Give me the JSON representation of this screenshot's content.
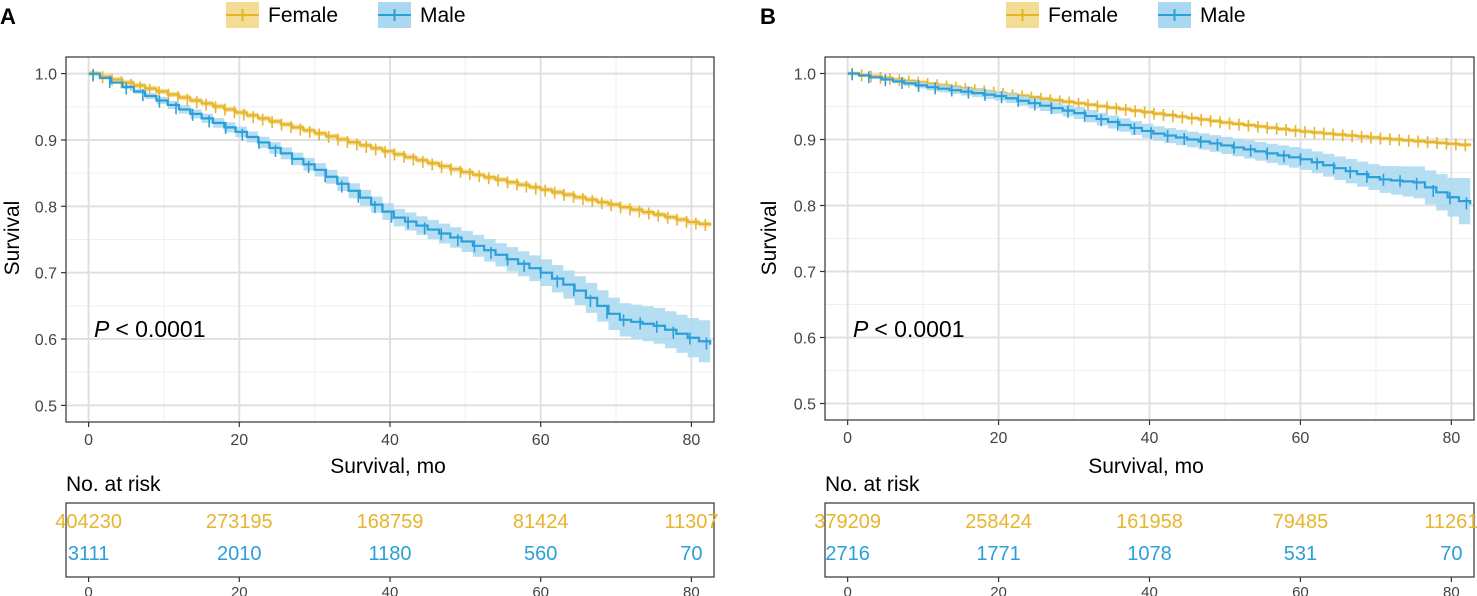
{
  "colors": {
    "female": "#E7B52C",
    "male": "#2B9FD9",
    "female_band": "#F3DC94",
    "male_band": "#A9D8F0",
    "grid": "#E0E0E0",
    "minor_grid": "#EFEFEF"
  },
  "legend": {
    "female": "Female",
    "male": "Male"
  },
  "risk_title": "No. at risk",
  "chart_data": [
    {
      "panel_label": "A",
      "type": "line",
      "title": "",
      "xlabel": "Survival, mo",
      "ylabel": "Survival",
      "pvalue": "< 0.0001",
      "p_symbol": "P",
      "xlim": [
        -3,
        83
      ],
      "ylim": [
        0.475,
        1.025
      ],
      "xticks": [
        0,
        20,
        40,
        60,
        80
      ],
      "yticks": [
        0.5,
        0.6,
        0.7,
        0.8,
        0.9,
        1.0
      ],
      "ytick_labels": [
        "0.5",
        "0.6",
        "0.7",
        "0.8",
        "0.9",
        "1.0"
      ],
      "xtick_labels": [
        "0",
        "20",
        "40",
        "60",
        "80"
      ],
      "series": [
        {
          "name": "Female",
          "x": [
            0,
            10,
            20,
            30,
            40,
            50,
            60,
            70,
            80,
            83
          ],
          "y": [
            1.0,
            0.97,
            0.94,
            0.91,
            0.88,
            0.85,
            0.825,
            0.8,
            0.775,
            0.77
          ],
          "ci": 0.004
        },
        {
          "name": "Male",
          "x": [
            0,
            10,
            20,
            30,
            40,
            50,
            60,
            65,
            70,
            75,
            80,
            83
          ],
          "y": [
            1.0,
            0.955,
            0.91,
            0.855,
            0.785,
            0.745,
            0.7,
            0.67,
            0.63,
            0.62,
            0.6,
            0.59
          ],
          "ci": [
            0.0,
            0.006,
            0.008,
            0.01,
            0.013,
            0.016,
            0.02,
            0.022,
            0.025,
            0.027,
            0.03,
            0.035
          ]
        }
      ],
      "risk_table": {
        "female": [
          "404230",
          "273195",
          "168759",
          "81424",
          "11307"
        ],
        "male": [
          "3111",
          "2010",
          "1180",
          "560",
          "70"
        ]
      }
    },
    {
      "panel_label": "B",
      "type": "line",
      "title": "",
      "xlabel": "Survival, mo",
      "ylabel": "Survival",
      "pvalue": "< 0.0001",
      "p_symbol": "P",
      "xlim": [
        -3,
        83
      ],
      "ylim": [
        0.475,
        1.025
      ],
      "xticks": [
        0,
        20,
        40,
        60,
        80
      ],
      "yticks": [
        0.5,
        0.6,
        0.7,
        0.8,
        0.9,
        1.0
      ],
      "ytick_labels": [
        "0.5",
        "0.6",
        "0.7",
        "0.8",
        "0.9",
        "1.0"
      ],
      "xtick_labels": [
        "0",
        "20",
        "40",
        "60",
        "80"
      ],
      "series": [
        {
          "name": "Female",
          "x": [
            0,
            10,
            20,
            30,
            40,
            50,
            60,
            70,
            80,
            83
          ],
          "y": [
            1.0,
            0.985,
            0.97,
            0.955,
            0.94,
            0.925,
            0.912,
            0.902,
            0.893,
            0.89
          ],
          "ci": 0.003
        },
        {
          "name": "Male",
          "x": [
            0,
            10,
            20,
            30,
            40,
            50,
            60,
            65,
            70,
            75,
            80,
            83
          ],
          "y": [
            1.0,
            0.98,
            0.965,
            0.94,
            0.91,
            0.89,
            0.87,
            0.855,
            0.84,
            0.835,
            0.81,
            0.8
          ],
          "ci": [
            0.0,
            0.005,
            0.007,
            0.009,
            0.011,
            0.013,
            0.016,
            0.018,
            0.02,
            0.024,
            0.03,
            0.045
          ]
        }
      ],
      "risk_table": {
        "female": [
          "379209",
          "258424",
          "161958",
          "79485",
          "11261"
        ],
        "male": [
          "2716",
          "1771",
          "1078",
          "531",
          "70"
        ]
      }
    }
  ]
}
